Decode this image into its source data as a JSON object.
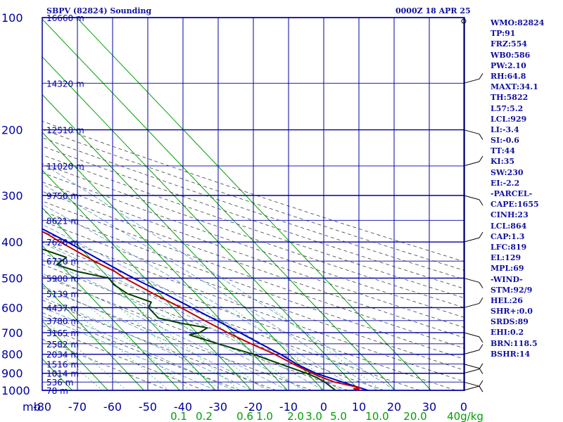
{
  "header": {
    "title": "SBPV (82824) Sounding",
    "datetime": "0000Z 18 APR 25"
  },
  "indices": [
    "WMO:82824",
    "TP:91",
    "FRZ:554",
    "WB0:586",
    "PW:2.10",
    "RH:64.8",
    "MAXT:34.1",
    "TH:5822",
    "L57:5.2",
    "LCL:929",
    "LI:-3.4",
    "SI:-0.6",
    "TT:44",
    "KI:35",
    "SW:230",
    "EI:-2.2",
    "-PARCEL-",
    "CAPE:1655",
    "CINH:23",
    "LCL:864",
    "CAP:1.3",
    "LFC:819",
    "EL:129",
    "MPL:69",
    "-WIND-",
    "STM:92/9",
    "HEL:26",
    "SHR+:0.0",
    "SRDS:89",
    "EHI:0.2",
    "BRN:118.5",
    "BSHR:14"
  ],
  "colors": {
    "frame": "#0000a0",
    "isotherm": "#00a000",
    "dry_adiabat": "#404040",
    "moist_adiabat": "#4f8fc0",
    "mixing_ratio": "#00a000",
    "temperature": "#c00000",
    "dewpoint": "#004000",
    "parcel": "#0000c0",
    "axis_label": "#0000a0",
    "wind": "#000000"
  },
  "chart_data": {
    "type": "skew-t",
    "title": "SBPV (82824) Sounding",
    "pressure_axis_label": "mb",
    "pressure_levels": [
      100,
      200,
      300,
      400,
      500,
      600,
      700,
      800,
      900,
      1000
    ],
    "temperature_ticks": [
      -80,
      -70,
      -60,
      -50,
      -40,
      -30,
      -20,
      -10,
      0,
      10,
      20,
      30
    ],
    "temperature_tick_labels": [
      "-80",
      "-70",
      "-60",
      "-50",
      "-40",
      "-30",
      "-20",
      "-10",
      "0",
      "10",
      "20",
      "30"
    ],
    "mixing_ratio_labels": [
      "0.1",
      "0.2",
      "0.6",
      "1.0",
      "2.0",
      "3.0",
      "5.0",
      "10.0",
      "20.0",
      "40g/kg"
    ],
    "height_labels": [
      {
        "p": 100,
        "text": "16660 m"
      },
      {
        "p": 150,
        "text": "14320 m"
      },
      {
        "p": 200,
        "text": "12510 m"
      },
      {
        "p": 250,
        "text": "11020 m"
      },
      {
        "p": 300,
        "text": "9750 m"
      },
      {
        "p": 350,
        "text": "8621 m"
      },
      {
        "p": 400,
        "text": "7620 m"
      },
      {
        "p": 450,
        "text": "6720 m"
      },
      {
        "p": 500,
        "text": "5900 m"
      },
      {
        "p": 550,
        "text": "5139 m"
      },
      {
        "p": 600,
        "text": "4437 m"
      },
      {
        "p": 650,
        "text": "3780 m"
      },
      {
        "p": 700,
        "text": "3165 m"
      },
      {
        "p": 750,
        "text": "2582 m"
      },
      {
        "p": 800,
        "text": "2034 m"
      },
      {
        "p": 850,
        "text": "1516 m"
      },
      {
        "p": 900,
        "text": "1014 m"
      },
      {
        "p": 950,
        "text": "536 m"
      },
      {
        "p": 1000,
        "text": "78 m"
      }
    ],
    "temperature_profile": [
      {
        "p": 1000,
        "t": 30.4
      },
      {
        "p": 990,
        "t": 28.9
      },
      {
        "p": 985,
        "t": 31.0
      },
      {
        "p": 950,
        "t": 25.3
      },
      {
        "p": 925,
        "t": 23.2
      },
      {
        "p": 900,
        "t": 21.4
      },
      {
        "p": 850,
        "t": 18.6
      },
      {
        "p": 800,
        "t": 16.0
      },
      {
        "p": 750,
        "t": 12.2
      },
      {
        "p": 700,
        "t": 8.6
      },
      {
        "p": 650,
        "t": 5.4
      },
      {
        "p": 600,
        "t": 2.2
      },
      {
        "p": 550,
        "t": -1.8
      },
      {
        "p": 500,
        "t": -5.6
      },
      {
        "p": 480,
        "t": -6.6
      },
      {
        "p": 450,
        "t": -9.6
      },
      {
        "p": 400,
        "t": -14.0
      },
      {
        "p": 380,
        "t": -15.6
      },
      {
        "p": 350,
        "t": -19.8
      },
      {
        "p": 300,
        "t": -28.0
      },
      {
        "p": 250,
        "t": -36.8
      },
      {
        "p": 200,
        "t": -47.6
      },
      {
        "p": 150,
        "t": -60.8
      },
      {
        "p": 125,
        "t": -68.2
      },
      {
        "p": 100,
        "t": -80.5
      }
    ],
    "dewpoint_profile": [
      {
        "p": 1000,
        "td": 23.4
      },
      {
        "p": 950,
        "td": 22.6
      },
      {
        "p": 925,
        "td": 21.6
      },
      {
        "p": 900,
        "td": 19.8
      },
      {
        "p": 850,
        "td": 15.0
      },
      {
        "p": 800,
        "td": 10.0
      },
      {
        "p": 750,
        "td": 3.0
      },
      {
        "p": 710,
        "td": -2.6
      },
      {
        "p": 700,
        "td": 0.8
      },
      {
        "p": 680,
        "td": 4.2
      },
      {
        "p": 660,
        "td": -2.0
      },
      {
        "p": 640,
        "td": -6.8
      },
      {
        "p": 600,
        "td": -6.8
      },
      {
        "p": 580,
        "td": -4.6
      },
      {
        "p": 550,
        "td": -9.0
      },
      {
        "p": 520,
        "td": -10.4
      },
      {
        "p": 500,
        "td": -10.0
      },
      {
        "p": 480,
        "td": -17.0
      },
      {
        "p": 460,
        "td": -21.0
      },
      {
        "p": 440,
        "td": -16.4
      },
      {
        "p": 410,
        "td": -22.6
      },
      {
        "p": 395,
        "td": -22.8
      },
      {
        "p": 380,
        "td": -29.6
      },
      {
        "p": 360,
        "td": -27.0
      },
      {
        "p": 330,
        "td": -38.0
      },
      {
        "p": 300,
        "td": -42.0
      },
      {
        "p": 290,
        "td": -43.4
      },
      {
        "p": 250,
        "td": -59.0
      },
      {
        "p": 200,
        "td": -69.0
      },
      {
        "p": 180,
        "td": -75.2
      },
      {
        "p": 150,
        "td": -79.8
      },
      {
        "p": 120,
        "td": -86.0
      }
    ],
    "parcel_profile": [
      {
        "p": 1000,
        "t": 32.4
      },
      {
        "p": 950,
        "t": 27.5
      },
      {
        "p": 900,
        "t": 22.4
      },
      {
        "p": 850,
        "t": 19.5
      },
      {
        "p": 800,
        "t": 17.6
      },
      {
        "p": 750,
        "t": 14.8
      },
      {
        "p": 700,
        "t": 12.0
      },
      {
        "p": 650,
        "t": 8.8
      },
      {
        "p": 600,
        "t": 5.2
      },
      {
        "p": 550,
        "t": 1.4
      },
      {
        "p": 500,
        "t": -3.2
      },
      {
        "p": 450,
        "t": -7.4
      },
      {
        "p": 400,
        "t": -12.0
      },
      {
        "p": 350,
        "t": -17.8
      },
      {
        "p": 300,
        "t": -25.4
      },
      {
        "p": 250,
        "t": -33.8
      },
      {
        "p": 200,
        "t": -44.4
      },
      {
        "p": 150,
        "t": -58.6
      },
      {
        "p": 100,
        "t": -79.0
      }
    ]
  }
}
